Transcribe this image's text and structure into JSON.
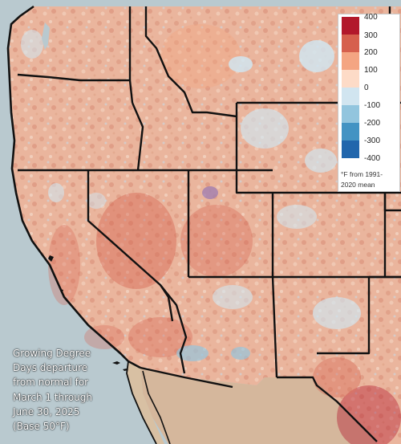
{
  "caption": [
    "Growing Degree",
    "Days departure",
    "from normal for",
    "March 1 through",
    "June 30, 2025",
    "(Base 50°F)"
  ],
  "legend": {
    "ticks": [
      "400",
      "300",
      "200",
      "100",
      "0",
      "-100",
      "-200",
      "-300",
      "-400"
    ],
    "units_line1": "°F from 1991-",
    "units_line2": "2020 mean",
    "colors": [
      "#b2182b",
      "#d6604d",
      "#f4a582",
      "#fddbc7",
      "#d1e5f0",
      "#92c5de",
      "#4393c3",
      "#2166ac"
    ]
  },
  "colors": {
    "ocean": "#b9c9cf",
    "land_warm": "#eab89f",
    "border": "#111111"
  }
}
